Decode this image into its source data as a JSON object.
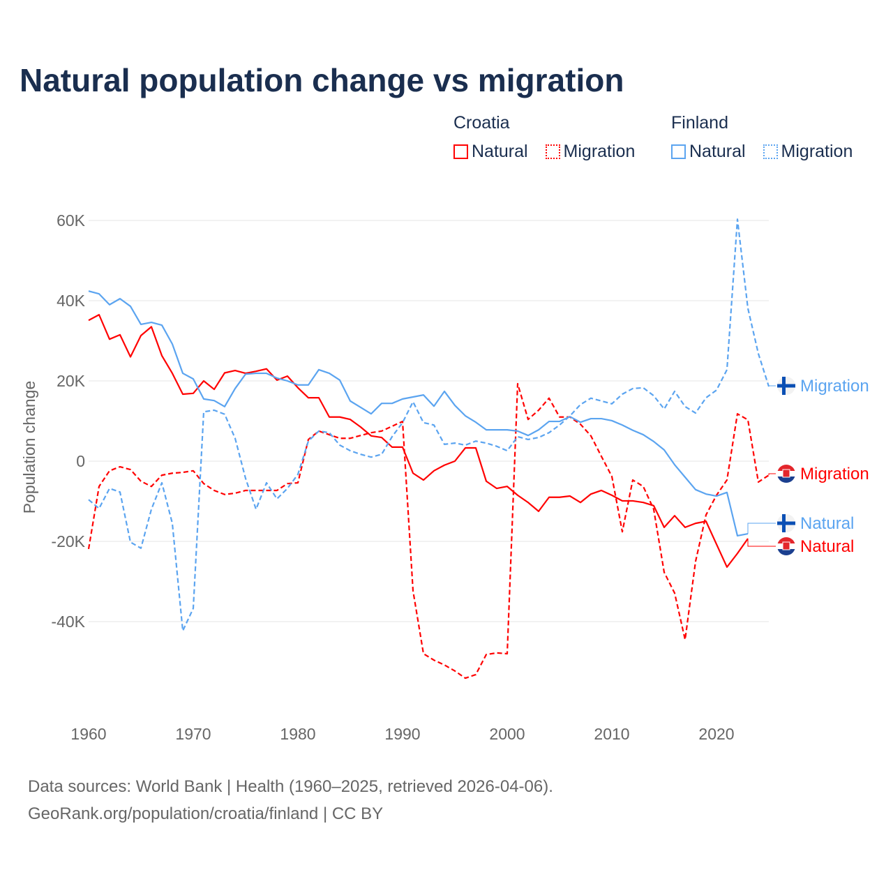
{
  "chart_data": {
    "type": "line",
    "title": "Natural population change vs migration",
    "xlabel": "",
    "ylabel": "Population change",
    "xlim": [
      1960,
      2025
    ],
    "ylim": [
      -57000,
      62000
    ],
    "x_ticks": [
      1960,
      1970,
      1980,
      1990,
      2000,
      2010,
      2020
    ],
    "x_tick_labels": [
      "1960",
      "1970",
      "1980",
      "1990",
      "2000",
      "2010",
      "2020"
    ],
    "y_ticks": [
      60000,
      40000,
      20000,
      0,
      -20000,
      -40000
    ],
    "y_tick_labels": [
      "60K",
      "40K",
      "20K",
      "0",
      "-20K",
      "-40K"
    ],
    "grid": true,
    "legend": {
      "placement": "top-right",
      "groups": [
        {
          "name": "Croatia",
          "items": [
            "Natural",
            "Migration"
          ]
        },
        {
          "name": "Finland",
          "items": [
            "Natural",
            "Migration"
          ]
        }
      ]
    },
    "series": [
      {
        "name": "Croatia Natural",
        "country": "Croatia",
        "kind": "Natural",
        "color": "#ff0000",
        "dash": "solid",
        "end_label": "Natural",
        "start_year": 1960,
        "values": [
          35100,
          36500,
          30400,
          31500,
          26000,
          31300,
          33500,
          26300,
          21900,
          16700,
          16900,
          20000,
          17900,
          22000,
          22600,
          21900,
          22400,
          23000,
          20200,
          21200,
          18300,
          15800,
          15800,
          11000,
          11000,
          10400,
          8500,
          6300,
          5900,
          3500,
          3500,
          -3000,
          -4700,
          -2400,
          -1000,
          0,
          3300,
          3300,
          -5000,
          -6800,
          -6300,
          -8500,
          -10300,
          -12500,
          -9000,
          -9000,
          -8700,
          -10300,
          -8200,
          -7300,
          -8500,
          -9900,
          -9900,
          -10300,
          -11100,
          -16500,
          -13600,
          -16500,
          -15500,
          -15000,
          -20700,
          -26400,
          -23000,
          -19300
        ]
      },
      {
        "name": "Croatia Migration",
        "country": "Croatia",
        "kind": "Migration",
        "color": "#ff0000",
        "dash": "dashed",
        "end_label": "Migration",
        "start_year": 1960,
        "values": [
          -21900,
          -6300,
          -2400,
          -1400,
          -2100,
          -5000,
          -6300,
          -3500,
          -3000,
          -2800,
          -2400,
          -5600,
          -7300,
          -8300,
          -8000,
          -7300,
          -7300,
          -7300,
          -7300,
          -5600,
          -5400,
          5400,
          7500,
          6600,
          5700,
          5700,
          6400,
          7100,
          7500,
          8700,
          9900,
          -32300,
          -48000,
          -49600,
          -50800,
          -52300,
          -54100,
          -53200,
          -48200,
          -47800,
          -48000,
          19300,
          10400,
          12700,
          15700,
          11000,
          11000,
          9200,
          6300,
          1200,
          -3800,
          -17600,
          -4700,
          -6300,
          -12000,
          -27700,
          -32900,
          -44500,
          -25000,
          -13400,
          -8500,
          -4700,
          11800,
          10300,
          -5200,
          -3500
        ]
      },
      {
        "name": "Finland Natural",
        "country": "Finland",
        "kind": "Natural",
        "color": "#5ba4f0",
        "dash": "solid",
        "end_label": "Natural",
        "start_year": 1960,
        "values": [
          42400,
          41700,
          39000,
          40500,
          38600,
          34100,
          34600,
          33900,
          29200,
          21900,
          20500,
          15500,
          15100,
          13600,
          18100,
          21700,
          21900,
          21900,
          20700,
          20000,
          19000,
          19000,
          22800,
          21900,
          20200,
          15000,
          13400,
          11800,
          14400,
          14400,
          15500,
          16000,
          16500,
          13700,
          17400,
          13900,
          11300,
          9700,
          7800,
          7800,
          7800,
          7500,
          6400,
          7800,
          9900,
          9900,
          11100,
          9700,
          10600,
          10600,
          10100,
          9000,
          7700,
          6600,
          4900,
          2800,
          -900,
          -4000,
          -7100,
          -8200,
          -8700,
          -7800,
          -18600,
          -18100
        ]
      },
      {
        "name": "Finland Migration",
        "country": "Finland",
        "kind": "Migration",
        "color": "#5ba4f0",
        "dash": "dashed",
        "end_label": "Migration",
        "start_year": 1960,
        "values": [
          -9600,
          -11800,
          -6800,
          -7700,
          -20200,
          -21700,
          -12000,
          -5400,
          -15500,
          -42300,
          -36700,
          12300,
          12700,
          11700,
          5700,
          -4300,
          -12000,
          -5400,
          -9400,
          -6800,
          -3300,
          5000,
          7500,
          7100,
          4000,
          2600,
          1700,
          1000,
          1700,
          6100,
          9600,
          14800,
          9600,
          9000,
          4200,
          4500,
          4000,
          5000,
          4500,
          3700,
          2600,
          6100,
          5400,
          5900,
          7100,
          9000,
          11300,
          14100,
          15700,
          15000,
          14300,
          16700,
          18100,
          18300,
          16300,
          13000,
          17400,
          13600,
          12000,
          15800,
          17700,
          22800,
          60300,
          38100,
          26800,
          18600
        ]
      }
    ]
  },
  "legend_groups": {
    "croatia": "Croatia",
    "finland": "Finland",
    "natural": "Natural",
    "migration": "Migration"
  },
  "footer": {
    "line1": "Data sources: World Bank | Health (1960–2025, retrieved 2026-04-06).",
    "line2": "GeoRank.org/population/croatia/finland | CC BY"
  },
  "colors": {
    "croatia": "#ff0000",
    "finland": "#5ba4f0",
    "title": "#1a2e4f"
  }
}
